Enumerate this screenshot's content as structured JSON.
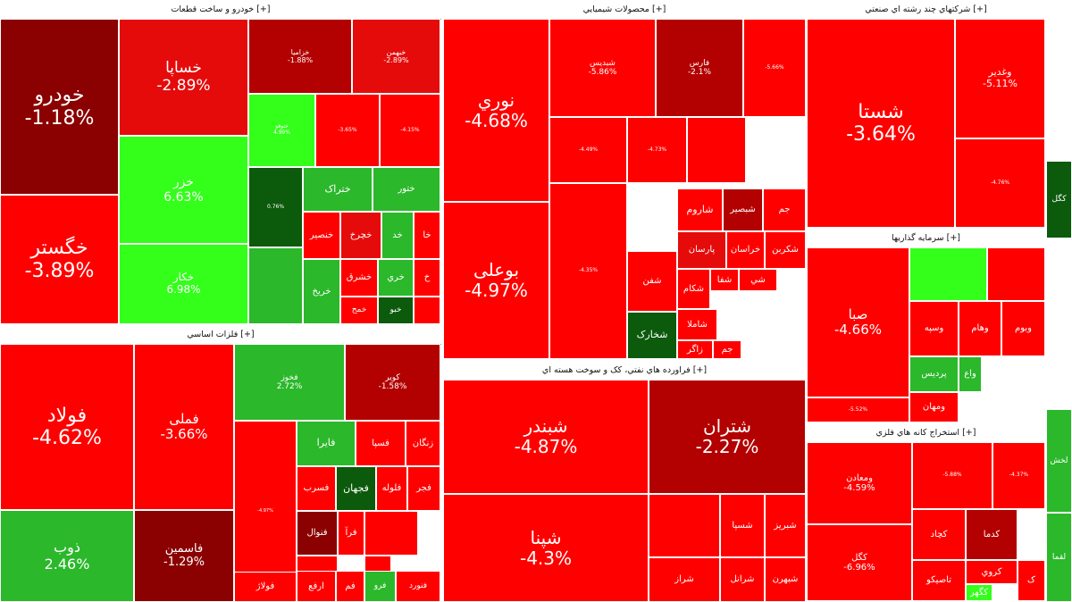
{
  "colors": {
    "red": "#ff0000",
    "red_mid": "#e50b0b",
    "red_dark": "#b30000",
    "maroon": "#8b0000",
    "green_light": "#33ff1a",
    "green_mid": "#2bb82b",
    "green_dark": "#0c5a0c"
  },
  "chart_data": {
    "type": "treemap",
    "groups": [
      {
        "header": "خودرو و ساخت قطعات [+]",
        "tiles": [
          {
            "name": "خودرو",
            "change": "-1.18%",
            "value": -1.18
          },
          {
            "name": "خگستر",
            "change": "-3.89%",
            "value": -3.89
          },
          {
            "name": "خساپا",
            "change": "-2.89%",
            "value": -2.89
          },
          {
            "name": "خزر",
            "change": "6.63%",
            "value": 6.63
          },
          {
            "name": "خکار",
            "change": "6.98%",
            "value": 6.98
          },
          {
            "name": "خزامیا",
            "change": "-1.88%",
            "value": -1.88
          },
          {
            "name": "خبهمن",
            "change": "-2.89%",
            "value": -2.89
          },
          {
            "name": "ختوقو",
            "change": "4.99%",
            "value": 4.99
          },
          {
            "name": "",
            "change": "-3.65%",
            "value": -3.65
          },
          {
            "name": "",
            "change": "-4.15%",
            "value": -4.15
          },
          {
            "name": "",
            "change": "0.76%",
            "value": 0.76
          },
          {
            "name": "ختراک",
            "change": "",
            "value": 3
          },
          {
            "name": "ختور",
            "change": "",
            "value": 3
          },
          {
            "name": "",
            "change": "",
            "value": 2
          },
          {
            "name": "خنصير",
            "change": "",
            "value": -4
          },
          {
            "name": "خچرخ",
            "change": "",
            "value": -3
          },
          {
            "name": "خد",
            "change": "",
            "value": 3
          },
          {
            "name": "خا",
            "change": "",
            "value": -4
          },
          {
            "name": "خریخ",
            "change": "",
            "value": 3
          },
          {
            "name": "خشرق",
            "change": "",
            "value": -4
          },
          {
            "name": "خري",
            "change": "",
            "value": 3
          },
          {
            "name": "خ",
            "change": "",
            "value": -4
          },
          {
            "name": "خمح",
            "change": "",
            "value": -4
          },
          {
            "name": "خبو",
            "change": "",
            "value": 1
          },
          {
            "name": "",
            "change": "",
            "value": -4
          }
        ]
      },
      {
        "header": "فلزات اساسي [+]",
        "tiles": [
          {
            "name": "فولاد",
            "change": "-4.62%",
            "value": -4.62
          },
          {
            "name": "ذوب",
            "change": "2.46%",
            "value": 2.46
          },
          {
            "name": "فملی",
            "change": "-3.66%",
            "value": -3.66
          },
          {
            "name": "فاسمین",
            "change": "-1.29%",
            "value": -1.29
          },
          {
            "name": "فخوز",
            "change": "2.72%",
            "value": 2.72
          },
          {
            "name": "کویر",
            "change": "-1.58%",
            "value": -1.58
          },
          {
            "name": "",
            "change": "-4.97%",
            "value": -4.97
          },
          {
            "name": "فایرا",
            "change": "",
            "value": 2
          },
          {
            "name": "فسپا",
            "change": "",
            "value": -5
          },
          {
            "name": "زنگان",
            "change": "",
            "value": -5
          },
          {
            "name": "فجهان",
            "change": "",
            "value": 1
          },
          {
            "name": "فلوله",
            "change": "",
            "value": -5
          },
          {
            "name": "فسرب",
            "change": "",
            "value": -5
          },
          {
            "name": "فجر",
            "change": "",
            "value": -5
          },
          {
            "name": "فنوال",
            "change": "",
            "value": -1
          },
          {
            "name": "فرآ",
            "change": "",
            "value": -4
          },
          {
            "name": "",
            "change": "",
            "value": -5
          },
          {
            "name": "کاوه",
            "change": "",
            "value": -5
          },
          {
            "name": "ف",
            "change": "",
            "value": -5
          },
          {
            "name": "فرو",
            "change": "",
            "value": 2
          },
          {
            "name": "فولاژ",
            "change": "",
            "value": -5
          },
          {
            "name": "ارفع",
            "change": "",
            "value": -5
          },
          {
            "name": "فم",
            "change": "",
            "value": -5
          },
          {
            "name": "فنورد",
            "change": "",
            "value": -5
          }
        ]
      },
      {
        "header": "محصولات شيميايي [+]",
        "tiles": [
          {
            "name": "نوري",
            "change": "-4.68%",
            "value": -4.68
          },
          {
            "name": "بوعلی",
            "change": "-4.97%",
            "value": -4.97
          },
          {
            "name": "شبدیس",
            "change": "-5.86%",
            "value": -5.86
          },
          {
            "name": "فارس",
            "change": "-2.1%",
            "value": -2.1
          },
          {
            "name": "",
            "change": "-5.66%",
            "value": -5.66
          },
          {
            "name": "",
            "change": "-4.49%",
            "value": -4.49
          },
          {
            "name": "",
            "change": "-4.73%",
            "value": -4.73
          },
          {
            "name": "",
            "change": "",
            "value": -5
          },
          {
            "name": "شاروم",
            "change": "",
            "value": -5
          },
          {
            "name": "شبصير",
            "change": "",
            "value": -2
          },
          {
            "name": "جم",
            "change": "",
            "value": -5
          },
          {
            "name": "پارسان",
            "change": "",
            "value": -3
          },
          {
            "name": "خراسان",
            "change": "",
            "value": -5
          },
          {
            "name": "شکربن",
            "change": "",
            "value": -5
          },
          {
            "name": "شفن",
            "change": "",
            "value": -5
          },
          {
            "name": "شکام",
            "change": "",
            "value": -5
          },
          {
            "name": "شفا",
            "change": "",
            "value": -5
          },
          {
            "name": "شي",
            "change": "",
            "value": -5
          },
          {
            "name": "شاملا",
            "change": "",
            "value": -4
          },
          {
            "name": "زاگر",
            "change": "",
            "value": -5
          },
          {
            "name": "جم",
            "change": "",
            "value": -5
          },
          {
            "name": "شخارک",
            "change": "",
            "value": 1
          },
          {
            "name": "",
            "change": "-4.35%",
            "value": -4.35
          }
        ]
      },
      {
        "header": "فراورده هاي نفتي، کک و سوخت هسته اي [+]",
        "tiles": [
          {
            "name": "شبندر",
            "change": "-4.87%",
            "value": -4.87
          },
          {
            "name": "شتران",
            "change": "-2.27%",
            "value": -2.27
          },
          {
            "name": "شپنا",
            "change": "-4.3%",
            "value": -4.3
          },
          {
            "name": "",
            "change": "",
            "value": -5
          },
          {
            "name": "شسپا",
            "change": "",
            "value": -5
          },
          {
            "name": "شبریز",
            "change": "",
            "value": -5
          },
          {
            "name": "شراز",
            "change": "",
            "value": -5
          },
          {
            "name": "شرانل",
            "change": "",
            "value": -5
          },
          {
            "name": "شبهرن",
            "change": "",
            "value": -5
          }
        ]
      },
      {
        "header": "شرکتهاي چند رشته اي صنعتي [+]",
        "tiles": [
          {
            "name": "شستا",
            "change": "-3.64%",
            "value": -3.64
          },
          {
            "name": "وغدير",
            "change": "-5.11%",
            "value": -5.11
          },
          {
            "name": "",
            "change": "-4.76%",
            "value": -4.76
          }
        ]
      },
      {
        "header": "سرمايه گذاريها [+]",
        "tiles": [
          {
            "name": "صبا",
            "change": "-4.66%",
            "value": -4.66
          },
          {
            "name": "",
            "change": "-5.52%",
            "value": -5.52
          },
          {
            "name": "",
            "change": "",
            "value": 4
          },
          {
            "name": "",
            "change": "",
            "value": -5
          },
          {
            "name": "وسپه",
            "change": "",
            "value": -5
          },
          {
            "name": "وهام",
            "change": "",
            "value": -5
          },
          {
            "name": "وبوم",
            "change": "",
            "value": -5
          },
          {
            "name": "پردیس",
            "change": "",
            "value": 3
          },
          {
            "name": "ومهان",
            "change": "",
            "value": -5
          },
          {
            "name": "واع",
            "change": "",
            "value": 3
          }
        ]
      },
      {
        "header": "استخراج کانه هاي فلزي [+]",
        "tiles": [
          {
            "name": "ومعادن",
            "change": "-4.59%",
            "value": -4.59
          },
          {
            "name": "کگل",
            "change": "-6.96%",
            "value": -6.96
          },
          {
            "name": "",
            "change": "-5.88%",
            "value": -5.88
          },
          {
            "name": "",
            "change": "-4.37%",
            "value": -4.37
          },
          {
            "name": "کچاد",
            "change": "",
            "value": -5
          },
          {
            "name": "کدما",
            "change": "",
            "value": -2
          },
          {
            "name": "کروي",
            "change": "",
            "value": -5
          },
          {
            "name": "تاصیکو",
            "change": "",
            "value": -5
          },
          {
            "name": "کگهر",
            "change": "",
            "value": 4
          },
          {
            "name": "ک",
            "change": "",
            "value": -5
          }
        ]
      },
      {
        "header": "",
        "tiles": [
          {
            "name": "کگل",
            "change": "",
            "value": 1
          },
          {
            "name": "لخش",
            "change": "",
            "value": 3
          },
          {
            "name": "لقما",
            "change": "",
            "value": 3
          }
        ]
      }
    ]
  }
}
